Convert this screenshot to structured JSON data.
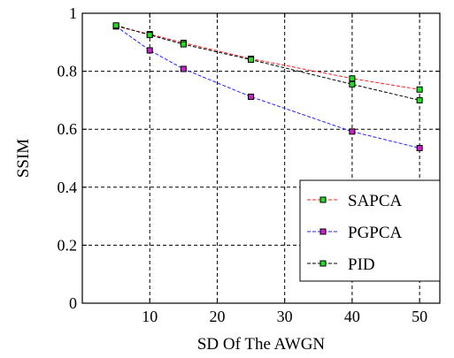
{
  "chart_data": {
    "type": "line",
    "title": "",
    "xlabel": "SD Of The AWGN",
    "ylabel": "SSIM",
    "xlim": [
      0,
      53
    ],
    "ylim": [
      0,
      1
    ],
    "xticks": [
      10,
      20,
      30,
      40,
      50
    ],
    "yticks": [
      0,
      0.2,
      0.4,
      0.6,
      0.8,
      1
    ],
    "xtick_labels": [
      "10",
      "20",
      "30",
      "40",
      "50"
    ],
    "ytick_labels": [
      "0",
      "0.2",
      "0.4",
      "0.6",
      "0.8",
      "1"
    ],
    "grid": true,
    "legend_position": "bottom-right",
    "series": [
      {
        "name": "SAPCA",
        "line_color": "#ff2020",
        "marker_color": "#22dd22",
        "x": [
          5,
          10,
          15,
          25,
          40,
          50
        ],
        "y": [
          0.955,
          0.928,
          0.898,
          0.843,
          0.775,
          0.737
        ]
      },
      {
        "name": "PGPCA",
        "line_color": "#2222ff",
        "marker_color": "#cc22cc",
        "x": [
          5,
          10,
          15,
          25,
          40,
          50
        ],
        "y": [
          0.955,
          0.872,
          0.808,
          0.712,
          0.592,
          0.535
        ]
      },
      {
        "name": "PID",
        "line_color": "#000000",
        "marker_color": "#22dd22",
        "x": [
          5,
          10,
          15,
          25,
          40,
          50
        ],
        "y": [
          0.958,
          0.925,
          0.893,
          0.84,
          0.755,
          0.7
        ]
      }
    ]
  }
}
